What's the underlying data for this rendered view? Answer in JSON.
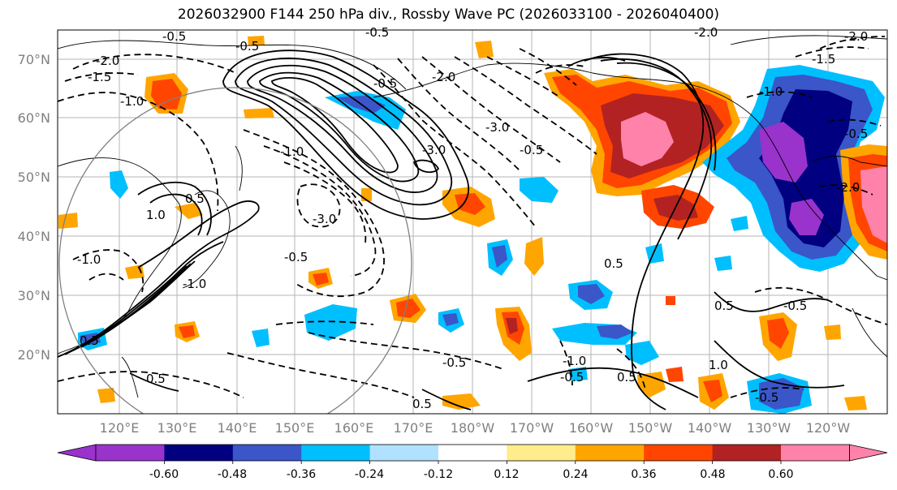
{
  "title": "2026032900 F144 250 hPa div., Rossby Wave PC (2026033100 - 2026040400)",
  "lat_labels": [
    "70°N",
    "60°N",
    "50°N",
    "40°N",
    "30°N",
    "20°N"
  ],
  "lon_labels": [
    "120°E",
    "130°E",
    "140°E",
    "150°E",
    "160°E",
    "170°E",
    "180°W",
    "170°W",
    "160°W",
    "150°W",
    "140°W",
    "130°W",
    "120°W"
  ],
  "contour_labels": [
    "-0.5",
    "-0.5",
    "-1.5",
    "-2.0",
    "-1.0",
    "-0.5",
    "-2.0",
    "-3.0",
    "-1.0",
    "-3.0",
    "-3.0",
    "-0.5",
    "-0.5",
    "-1.0",
    "-1.0",
    "-0.5",
    "-0.5",
    "0.5",
    "0.5",
    "0.5",
    "1.0",
    "-1.0",
    "0.5",
    "-0.5",
    "-2.0",
    "-1.5",
    "-2.0",
    "-1.0",
    "-2.0",
    "-0.5",
    "-0.5",
    "0.5",
    "1.0",
    "0.5",
    "-0.5",
    "0.5"
  ],
  "colorbar": {
    "ticks": [
      "-0.60",
      "-0.48",
      "-0.36",
      "-0.24",
      "-0.12",
      "0.12",
      "0.24",
      "0.36",
      "0.48",
      "0.60"
    ],
    "colors": [
      "#9933cc",
      "#000080",
      "#3a56c8",
      "#00bfff",
      "#b0e2ff",
      "#ffffff",
      "#ffec8b",
      "#ffa500",
      "#ff4500",
      "#b22222",
      "#ff82ab"
    ]
  }
}
